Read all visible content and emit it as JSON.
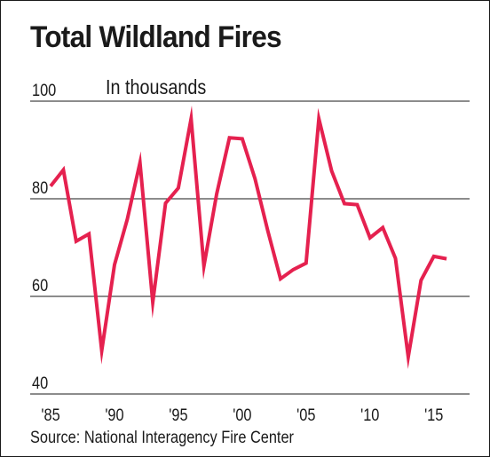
{
  "chart_data": {
    "type": "line",
    "title": "Total Wildland Fires",
    "subtitle": "In thousands",
    "source": "Source: National Interagency Fire Center",
    "xlabel": "",
    "ylabel": "",
    "x": [
      1985,
      1986,
      1987,
      1988,
      1989,
      1990,
      1991,
      1992,
      1993,
      1994,
      1995,
      1996,
      1997,
      1998,
      1999,
      2000,
      2001,
      2002,
      2003,
      2004,
      2005,
      2006,
      2007,
      2008,
      2009,
      2010,
      2011,
      2012,
      2013,
      2014,
      2015,
      2016
    ],
    "series": [
      {
        "name": "",
        "color": "#e5214f",
        "values": [
          82.6,
          85.9,
          71.3,
          72.8,
          48.9,
          66.5,
          75.8,
          87.4,
          58.8,
          79.1,
          82.2,
          96.4,
          66.2,
          81.0,
          92.5,
          92.3,
          84.1,
          73.5,
          63.6,
          65.5,
          66.8,
          96.4,
          85.7,
          79.0,
          78.8,
          72.0,
          74.1,
          67.8,
          47.6,
          63.3,
          68.2,
          67.7
        ]
      }
    ],
    "xticks": [
      {
        "value": 1985,
        "label": "'85"
      },
      {
        "value": 1990,
        "label": "'90"
      },
      {
        "value": 1995,
        "label": "'95"
      },
      {
        "value": 2000,
        "label": "'00"
      },
      {
        "value": 2005,
        "label": "'05"
      },
      {
        "value": 2010,
        "label": "'10"
      },
      {
        "value": 2015,
        "label": "'15"
      }
    ],
    "yticks": [
      {
        "value": 40,
        "label": "40"
      },
      {
        "value": 60,
        "label": "60"
      },
      {
        "value": 80,
        "label": "80"
      },
      {
        "value": 100,
        "label": "100"
      }
    ],
    "xlim": [
      1983.4,
      2017.8
    ],
    "ylim": [
      40,
      100
    ],
    "grid": true,
    "legend": "none"
  }
}
